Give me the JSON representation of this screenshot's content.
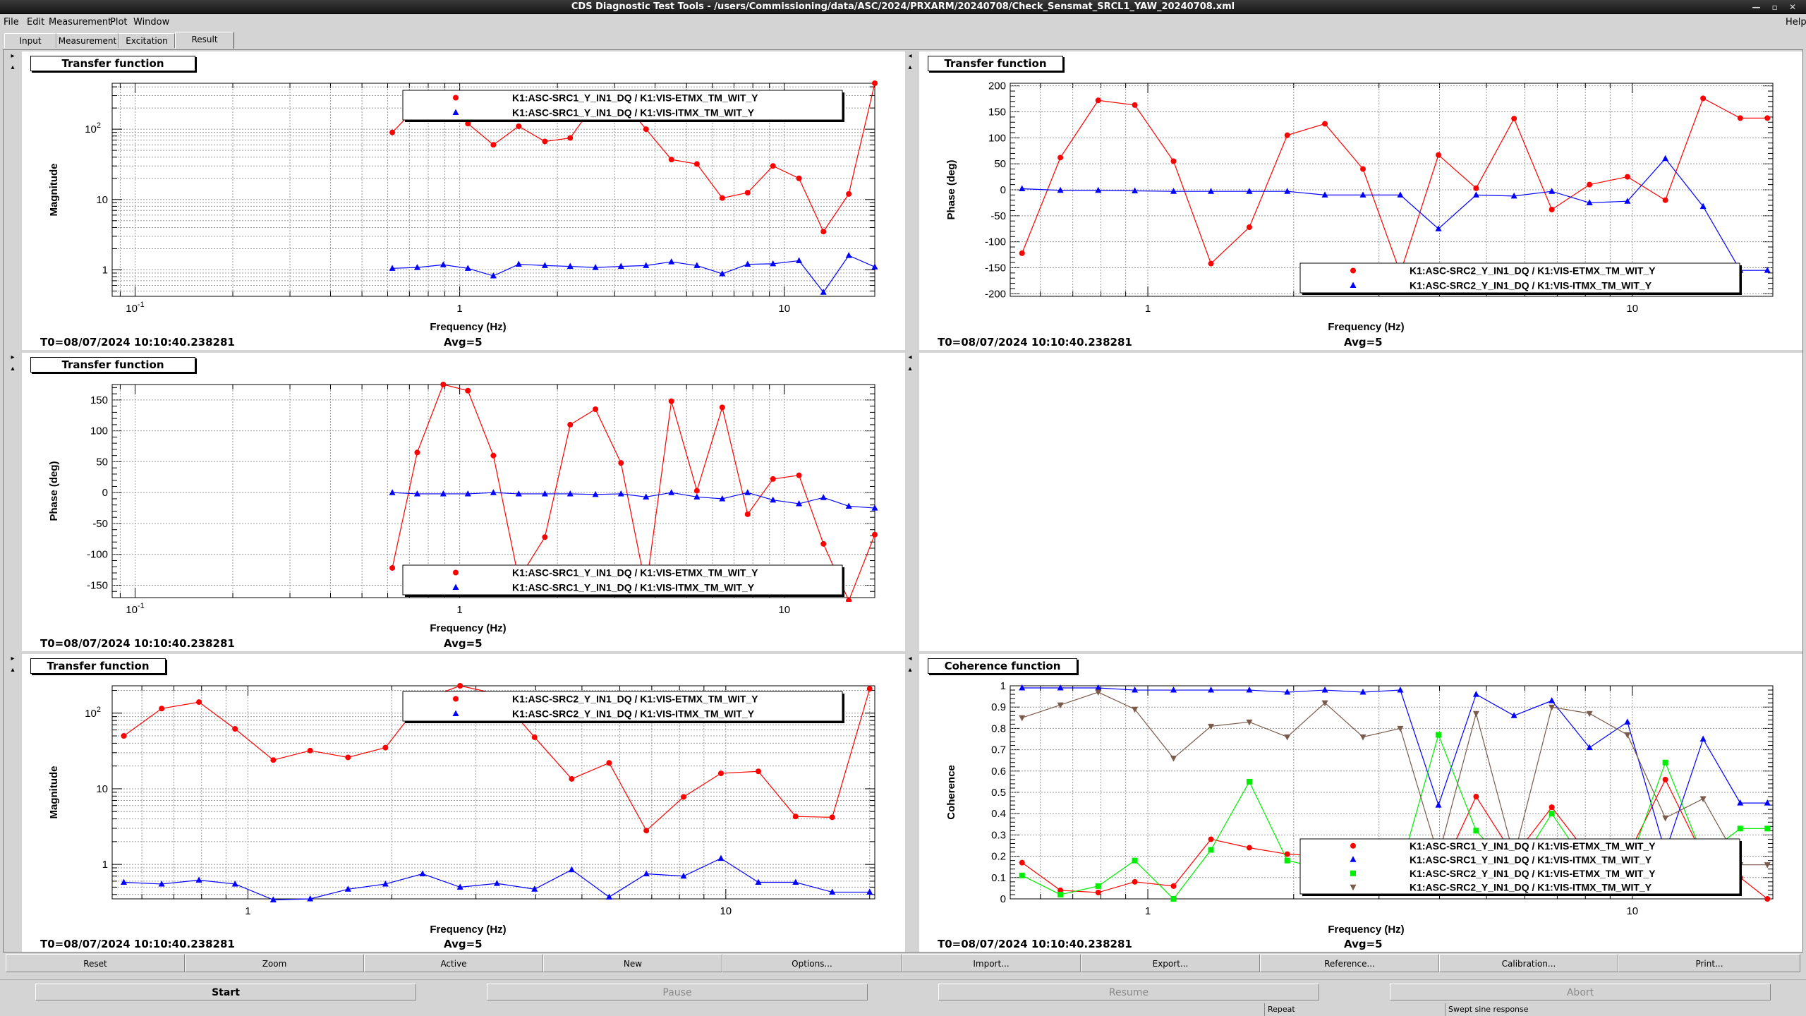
{
  "window": {
    "title": "CDS Diagnostic Test Tools - /users/Commissioning/data/ASC/2024/PRXARM/20240708/Check_Sensmat_SRCL1_YAW_20240708.xml"
  },
  "menu": {
    "file": "File",
    "edit": "Edit",
    "measurement": "Measurement",
    "plot": "Plot",
    "window": "Window",
    "help": "Help"
  },
  "tabs": [
    "Input",
    "Measurement",
    "Excitation",
    "Result"
  ],
  "panels": {
    "p1": {
      "title": "Transfer function",
      "t0": "T0=08/07/2024 10:10:40.238281",
      "avg": "Avg=5"
    },
    "p2": {
      "title": "Transfer function",
      "t0": "T0=08/07/2024 10:10:40.238281",
      "avg": "Avg=5"
    },
    "p3": {
      "title": "Transfer function",
      "t0": "T0=08/07/2024 10:10:40.238281",
      "avg": "Avg=5"
    },
    "p5": {
      "title": "Transfer function",
      "t0": "T0=08/07/2024 10:10:40.238281",
      "avg": "Avg=5"
    },
    "p6": {
      "title": "Coherence function",
      "t0": "T0=08/07/2024 10:10:40.238281",
      "avg": "Avg=5"
    }
  },
  "plot_buttons": [
    "Reset",
    "Zoom",
    "Active",
    "New",
    "Options...",
    "Import...",
    "Export...",
    "Reference...",
    "Calibration...",
    "Print..."
  ],
  "control_buttons": {
    "start": "Start",
    "pause": "Pause",
    "resume": "Resume",
    "abort": "Abort"
  },
  "status": {
    "repeat": "Repeat",
    "mode": "Swept sine response"
  },
  "colors": {
    "red": "#ff0000",
    "blue": "#0000ff",
    "green": "#00ee00",
    "brown": "#7a5a4a"
  },
  "chart_data": [
    {
      "type": "line",
      "title": "Transfer function",
      "xlabel": "Frequency (Hz)",
      "ylabel": "Magnitude",
      "xscale": "log",
      "yscale": "log",
      "xlim": [
        0.085,
        19
      ],
      "ylim": [
        0.42,
        450
      ],
      "xticks": [
        "10^-1",
        "1",
        "10"
      ],
      "yticks": [
        "1",
        "10",
        "10^2"
      ],
      "grid": true,
      "legend": "top-right",
      "x": [
        0.62,
        0.74,
        0.89,
        1.06,
        1.27,
        1.52,
        1.83,
        2.19,
        2.62,
        3.14,
        3.75,
        4.49,
        5.38,
        6.44,
        7.71,
        9.23,
        11.1,
        13.2,
        15.8,
        19.0
      ],
      "series": [
        {
          "name": "K1:ASC-SRC1_Y_IN1_DQ / K1:VIS-ETMX_TM_WIT_Y",
          "color": "red",
          "marker": "circle",
          "values": [
            90,
            210,
            260,
            120,
            60,
            110,
            67,
            75,
            240,
            270,
            100,
            37,
            32,
            10.5,
            12.5,
            30,
            20,
            3.5,
            12,
            450
          ]
        },
        {
          "name": "K1:ASC-SRC1_Y_IN1_DQ / K1:VIS-ITMX_TM_WIT_Y",
          "color": "blue",
          "marker": "triangle",
          "values": [
            1.05,
            1.08,
            1.18,
            1.05,
            0.82,
            1.2,
            1.15,
            1.12,
            1.08,
            1.12,
            1.15,
            1.3,
            1.15,
            0.88,
            1.2,
            1.22,
            1.35,
            0.48,
            1.6,
            1.1
          ]
        }
      ]
    },
    {
      "type": "line",
      "title": "Transfer function",
      "xlabel": "Frequency (Hz)",
      "ylabel": "Phase (deg)",
      "xscale": "log",
      "xlim": [
        0.52,
        19.5
      ],
      "ylim": [
        -205,
        205
      ],
      "xticks": [
        "1",
        "10"
      ],
      "yticks": [
        -200,
        -150,
        -100,
        -50,
        0,
        50,
        100,
        150,
        200
      ],
      "grid": true,
      "legend": "bottom-right",
      "x": [
        0.55,
        0.66,
        0.79,
        0.94,
        1.13,
        1.35,
        1.62,
        1.94,
        2.32,
        2.78,
        3.32,
        3.98,
        4.76,
        5.7,
        6.82,
        8.16,
        9.77,
        11.7,
        14.0,
        16.7,
        19.0
      ],
      "series": [
        {
          "name": "K1:ASC-SRC2_Y_IN1_DQ / K1:VIS-ETMX_TM_WIT_Y",
          "color": "red",
          "marker": "circle",
          "values": [
            -122,
            62,
            172,
            163,
            55,
            -142,
            -72,
            105,
            127,
            40,
            -160,
            67,
            3,
            137,
            -38,
            10,
            25,
            -20,
            176,
            138,
            138
          ]
        },
        {
          "name": "K1:ASC-SRC2_Y_IN1_DQ / K1:VIS-ITMX_TM_WIT_Y",
          "color": "blue",
          "marker": "triangle",
          "values": [
            2,
            -1,
            -1,
            -2,
            -3,
            -3,
            -3,
            -3,
            -10,
            -10,
            -10,
            -75,
            -10,
            -12,
            -3,
            -25,
            -22,
            60,
            -32,
            -155,
            -155
          ]
        }
      ]
    },
    {
      "type": "line",
      "title": "Transfer function",
      "xlabel": "Frequency (Hz)",
      "ylabel": "Phase (deg)",
      "xscale": "log",
      "xlim": [
        0.085,
        19
      ],
      "ylim": [
        -170,
        175
      ],
      "xticks": [
        "10^-1",
        "1",
        "10"
      ],
      "yticks": [
        -150,
        -100,
        -50,
        0,
        50,
        100,
        150
      ],
      "grid": true,
      "legend": "bottom-right",
      "x": [
        0.62,
        0.74,
        0.89,
        1.06,
        1.27,
        1.52,
        1.83,
        2.19,
        2.62,
        3.14,
        3.75,
        4.49,
        5.38,
        6.44,
        7.71,
        9.23,
        11.1,
        13.2,
        15.8,
        19.0
      ],
      "series": [
        {
          "name": "K1:ASC-SRC1_Y_IN1_DQ / K1:VIS-ETMX_TM_WIT_Y",
          "color": "red",
          "marker": "circle",
          "values": [
            -122,
            65,
            175,
            165,
            60,
            -140,
            -72,
            110,
            135,
            48,
            -155,
            148,
            3,
            138,
            -35,
            22,
            28,
            -83,
            -175,
            -68
          ]
        },
        {
          "name": "K1:ASC-SRC1_Y_IN1_DQ / K1:VIS-ITMX_TM_WIT_Y",
          "color": "blue",
          "marker": "triangle",
          "values": [
            0,
            -2,
            -2,
            -2,
            0,
            -2,
            -2,
            -2,
            -3,
            -2,
            -7,
            0,
            -7,
            -10,
            0,
            -12,
            -18,
            -8,
            -22,
            -25
          ]
        }
      ]
    },
    {
      "type": "line",
      "title": "Transfer function",
      "xlabel": "Frequency (Hz)",
      "ylabel": "Magnitude",
      "xscale": "log",
      "yscale": "log",
      "xlim": [
        0.52,
        20.5
      ],
      "ylim": [
        0.35,
        230
      ],
      "xticks": [
        "1",
        "10"
      ],
      "yticks": [
        "1",
        "10",
        "10^2"
      ],
      "grid": true,
      "legend": "top-right",
      "x": [
        0.55,
        0.66,
        0.79,
        0.94,
        1.13,
        1.35,
        1.62,
        1.94,
        2.32,
        2.78,
        3.32,
        3.98,
        4.76,
        5.7,
        6.82,
        8.16,
        9.77,
        11.7,
        14.0,
        16.7,
        20.0
      ],
      "series": [
        {
          "name": "K1:ASC-SRC2_Y_IN1_DQ / K1:VIS-ETMX_TM_WIT_Y",
          "color": "red",
          "marker": "circle",
          "values": [
            50,
            115,
            140,
            62,
            24,
            32,
            26,
            35,
            150,
            230,
            180,
            48,
            13.5,
            22,
            2.8,
            7.8,
            16,
            17,
            4.3,
            4.2,
            210
          ]
        },
        {
          "name": "K1:ASC-SRC2_Y_IN1_DQ / K1:VIS-ITMX_TM_WIT_Y",
          "color": "blue",
          "marker": "triangle",
          "values": [
            0.58,
            0.55,
            0.62,
            0.55,
            0.34,
            0.35,
            0.47,
            0.55,
            0.75,
            0.5,
            0.56,
            0.47,
            0.85,
            0.37,
            0.75,
            0.7,
            1.2,
            0.58,
            0.58,
            0.43,
            0.43
          ]
        }
      ]
    },
    {
      "type": "line",
      "title": "Coherence function",
      "xlabel": "Frequency (Hz)",
      "ylabel": "Coherence",
      "xscale": "log",
      "xlim": [
        0.52,
        19.5
      ],
      "ylim": [
        0,
        1
      ],
      "xticks": [
        "1",
        "10"
      ],
      "yticks": [
        0,
        0.1,
        0.2,
        0.3,
        0.4,
        0.5,
        0.6,
        0.7,
        0.8,
        0.9,
        1
      ],
      "grid": true,
      "legend": "bottom-right",
      "x": [
        0.55,
        0.66,
        0.79,
        0.94,
        1.13,
        1.35,
        1.62,
        1.94,
        2.32,
        2.78,
        3.32,
        3.98,
        4.76,
        5.7,
        6.82,
        8.16,
        9.77,
        11.7,
        14.0,
        16.7,
        19.0
      ],
      "series": [
        {
          "name": "K1:ASC-SRC1_Y_IN1_DQ / K1:VIS-ETMX_TM_WIT_Y",
          "color": "red",
          "marker": "circle",
          "values": [
            0.17,
            0.04,
            0.03,
            0.08,
            0.06,
            0.28,
            0.24,
            0.21,
            0.2,
            0.2,
            0.2,
            0.1,
            0.48,
            0.2,
            0.43,
            0.2,
            0.2,
            0.56,
            0.2,
            0.1,
            0.0
          ]
        },
        {
          "name": "K1:ASC-SRC1_Y_IN1_DQ / K1:VIS-ITMX_TM_WIT_Y",
          "color": "blue",
          "marker": "triangle",
          "values": [
            0.99,
            0.99,
            0.99,
            0.98,
            0.98,
            0.98,
            0.98,
            0.97,
            0.98,
            0.97,
            0.98,
            0.44,
            0.96,
            0.86,
            0.93,
            0.71,
            0.83,
            0.22,
            0.75,
            0.45,
            0.45
          ]
        },
        {
          "name": "K1:ASC-SRC2_Y_IN1_DQ / K1:VIS-ETMX_TM_WIT_Y",
          "color": "green",
          "marker": "square",
          "values": [
            0.11,
            0.02,
            0.06,
            0.18,
            0.0,
            0.23,
            0.55,
            0.18,
            0.14,
            0.14,
            0.14,
            0.77,
            0.32,
            0.12,
            0.4,
            0.14,
            0.14,
            0.64,
            0.2,
            0.33,
            0.33
          ]
        },
        {
          "name": "K1:ASC-SRC2_Y_IN1_DQ / K1:VIS-ITMX_TM_WIT_Y",
          "color": "brown",
          "marker": "triangle-down",
          "values": [
            0.85,
            0.91,
            0.97,
            0.89,
            0.66,
            0.81,
            0.83,
            0.76,
            0.92,
            0.76,
            0.8,
            0.2,
            0.87,
            0.2,
            0.9,
            0.87,
            0.77,
            0.38,
            0.47,
            0.16,
            0.16
          ]
        }
      ]
    }
  ]
}
